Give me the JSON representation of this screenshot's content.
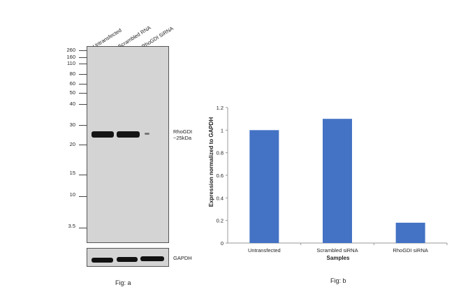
{
  "figure_a": {
    "lanes": [
      "Untransfected",
      "Scrambled RNA",
      "RhoGDI SiRNA"
    ],
    "mw_markers": [
      "260",
      "160",
      "110",
      "80",
      "60",
      "50",
      "40",
      "30",
      "20",
      "15",
      "10",
      "3.5"
    ],
    "band_label_line1": "RhoGDI",
    "band_label_line2": "~25kDa",
    "loading_control_label": "GAPDH",
    "caption": "Fig: a"
  },
  "figure_b": {
    "caption": "Fig: b"
  },
  "chart_data": {
    "type": "bar",
    "categories": [
      "Untransfected",
      "Scrambled siRNA",
      "RhoGDI siRNA"
    ],
    "values": [
      1.0,
      1.1,
      0.18
    ],
    "xlabel": "Samples",
    "ylabel": "Expression normalized to GAPDH",
    "ylim": [
      0,
      1.2
    ],
    "yticks": [
      "0",
      "0.2",
      "0.4",
      "0.6",
      "0.8",
      "1",
      "1.2"
    ],
    "bar_color": "#4472c4",
    "grid": false
  }
}
